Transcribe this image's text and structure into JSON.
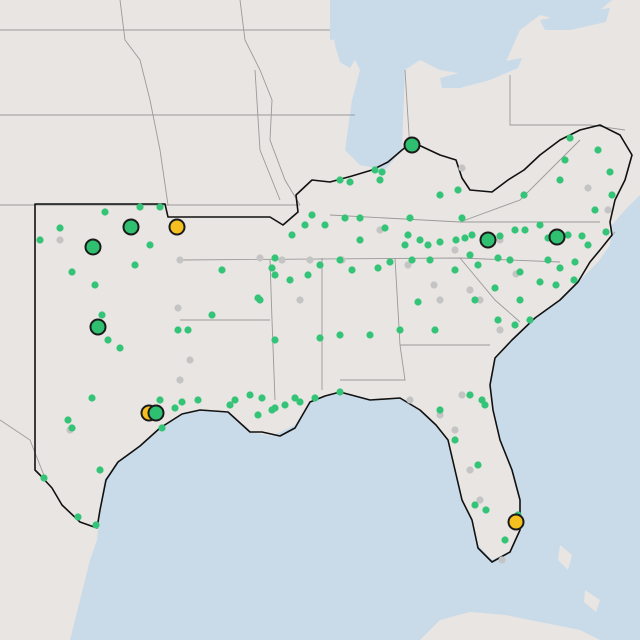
{
  "map": {
    "colors": {
      "water": "#c9dbe9",
      "land": "#e9e5e2",
      "region_outline": "#111111",
      "state_lines": "#9a9a9a",
      "small_marker_green": "#34c477",
      "small_marker_gray": "#c4c4c4",
      "large_marker_green": "#2fbf71",
      "large_marker_yellow": "#f5bf1f",
      "large_marker_stroke": "#1a1a1a"
    },
    "large_markers": [
      {
        "status": "green"
      },
      {
        "status": "green"
      },
      {
        "status": "yellow"
      },
      {
        "status": "green"
      },
      {
        "status": "green"
      },
      {
        "status": "green"
      },
      {
        "status": "green"
      },
      {
        "status": "yellow"
      },
      {
        "status": "green"
      },
      {
        "status": "yellow"
      }
    ]
  }
}
